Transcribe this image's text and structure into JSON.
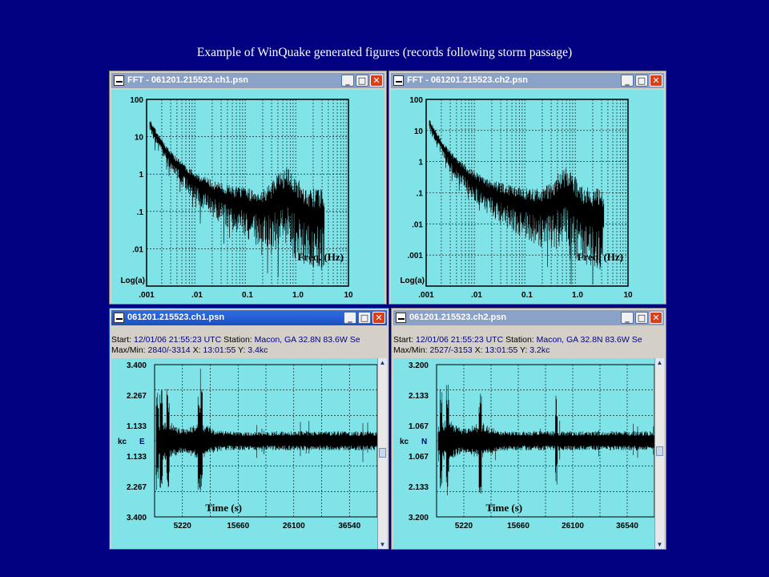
{
  "slide": {
    "title": "Example of WinQuake generated figures (records following storm passage)"
  },
  "fft_windows": [
    {
      "title": "FFT - 061201.215523.ch1.psn",
      "y_ticks": [
        "100",
        "10",
        "1",
        ".1",
        ".01"
      ],
      "y_label": "Log(a)",
      "x_ticks": [
        ".001",
        ".01",
        "0.1",
        "1.0",
        "10"
      ],
      "x_label": "Freq. (Hz)"
    },
    {
      "title": "FFT - 061201.215523.ch2.psn",
      "y_ticks": [
        "100",
        "10",
        "1",
        ".1",
        ".01",
        ".001"
      ],
      "y_label": "Log(a)",
      "x_ticks": [
        ".001",
        ".01",
        "0.1",
        "1.0",
        "10"
      ],
      "x_label": "Freq. (Hz)"
    }
  ],
  "trace_windows": [
    {
      "title": "061201.215523.ch1.psn",
      "start_label": "Start:",
      "start_value": "12/01/06 21:55:23 UTC",
      "station_label": "Station:",
      "station_value": "Macon, GA 32.8N 83.6W Se",
      "maxmin_label": "Max/Min:",
      "maxmin_value": "2840/-3314",
      "x_label_short": "X:",
      "x_value": "13:01:55",
      "y_label_short": "Y:",
      "y_value": "3.4kc",
      "y_ticks": [
        "3.400",
        "2.267",
        "1.133",
        "1.133",
        "2.267",
        "3.400"
      ],
      "unit": "kc",
      "component": "E",
      "x_ticks": [
        "5220",
        "15660",
        "26100",
        "36540"
      ],
      "x_label": "Time (s)"
    },
    {
      "title": "061201.215523.ch2.psn",
      "start_label": "Start:",
      "start_value": "12/01/06 21:55:23 UTC",
      "station_label": "Station:",
      "station_value": "Macon, GA 32.8N 83.6W Se",
      "maxmin_label": "Max/Min:",
      "maxmin_value": "2527/-3153",
      "x_label_short": "X:",
      "x_value": "13:01:55",
      "y_label_short": "Y:",
      "y_value": "3.2kc",
      "y_ticks": [
        "3.200",
        "2.133",
        "1.067",
        "1.067",
        "2.133",
        "3.200"
      ],
      "unit": "kc",
      "component": "N",
      "x_ticks": [
        "5220",
        "15660",
        "26100",
        "36540"
      ],
      "x_label": "Time (s)"
    }
  ],
  "window_buttons": {
    "minimize": "_",
    "maximize": "□",
    "close": "✕"
  },
  "colors": {
    "plot_bg": "#7fe3e8",
    "trace": "#000000",
    "grid": "#000000",
    "slide_bg": "#000080"
  }
}
